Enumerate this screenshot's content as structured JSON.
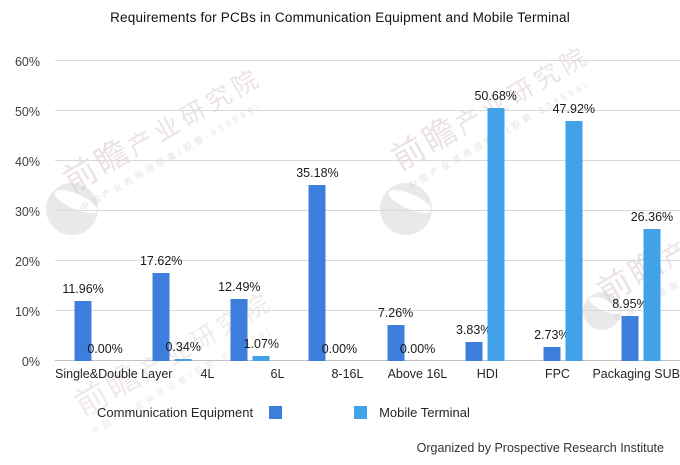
{
  "title": "Requirements for PCBs in Communication Equipment and Mobile Terminal",
  "footer": {
    "text": "Organized by Prospective Research Institute"
  },
  "legend": {
    "items": [
      {
        "label": "Communication Equipment",
        "color": "#3D7DDB"
      },
      {
        "label": "Mobile Terminal",
        "color": "#41A1E9"
      }
    ]
  },
  "watermark": {
    "brand_bold": "前瞻",
    "brand_rest": "产业研究院",
    "subtext": "中国产业咨询领导者(股票·839599)"
  },
  "axes": {
    "y_ticks": [
      "0%",
      "10%",
      "20%",
      "30%",
      "40%",
      "50%",
      "60%"
    ]
  },
  "colors": {
    "grid": "#D9D9D9",
    "axis_line": "#C2C2C2",
    "background": "#FFFFFF"
  },
  "chart_data": {
    "type": "bar",
    "title": "Requirements for PCBs in Communication Equipment and Mobile Terminal",
    "categories": [
      "Single&Double Layer",
      "4L",
      "6L",
      "8-16L",
      "Above 16L",
      "HDI",
      "FPC",
      "Packaging SUB"
    ],
    "series": [
      {
        "name": "Communication Equipment",
        "color": "#3D7DDB",
        "values": [
          11.96,
          17.62,
          12.49,
          35.18,
          7.26,
          3.83,
          2.73,
          8.95
        ]
      },
      {
        "name": "Mobile Terminal",
        "color": "#41A1E9",
        "values": [
          0.0,
          0.34,
          1.07,
          0.0,
          0.0,
          50.68,
          47.92,
          26.36
        ]
      }
    ],
    "xlabel": "",
    "ylabel": "",
    "ylim": [
      0,
      60
    ],
    "y_tick_step": 10,
    "grid": true,
    "legend_position": "bottom",
    "value_labels": true,
    "value_label_suffix": "%"
  }
}
